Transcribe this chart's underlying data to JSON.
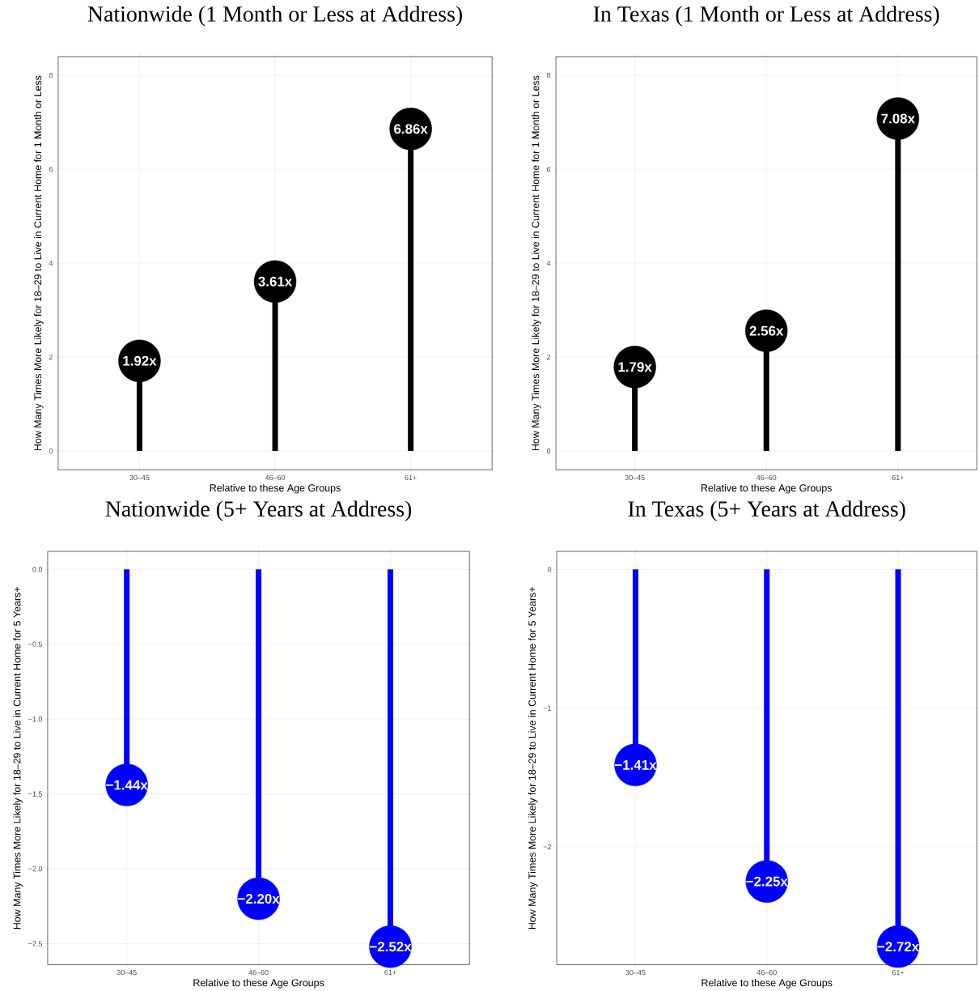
{
  "chart_data": [
    {
      "type": "lollipop",
      "title": "Nationwide (1 Month or Less at Address)",
      "xlabel": "Relative to these Age Groups",
      "ylabel": "How Many Times More Likely for 18–29 to Live in Current Home for 1 Month or Less",
      "categories": [
        "30–45",
        "46–60",
        "61+"
      ],
      "values": [
        1.92,
        3.61,
        6.86
      ],
      "value_labels": [
        "1.92x",
        "3.61x",
        "6.86x"
      ],
      "color": "#000000",
      "ylim": [
        -0.4,
        8.4
      ],
      "yticks": [
        0,
        2,
        4,
        6,
        8
      ],
      "grid": true
    },
    {
      "type": "lollipop",
      "title": "In Texas (1 Month or Less at Address)",
      "xlabel": "Relative to these Age Groups",
      "ylabel": "How Many Times More Likely for 18–29 to Live in Current Home for 1 Month or Less",
      "categories": [
        "30–45",
        "46–60",
        "61+"
      ],
      "values": [
        1.79,
        2.56,
        7.08
      ],
      "value_labels": [
        "1.79x",
        "2.56x",
        "7.08x"
      ],
      "color": "#000000",
      "ylim": [
        -0.4,
        8.4
      ],
      "yticks": [
        0,
        2,
        4,
        6,
        8
      ],
      "grid": true
    },
    {
      "type": "lollipop",
      "title": "Nationwide (5+ Years at Address)",
      "xlabel": "Relative to these Age Groups",
      "ylabel": "How Many Times More Likely for 18–29 to Live in Current Home for 5 Years+",
      "categories": [
        "30–45",
        "46–60",
        "61+"
      ],
      "values": [
        -1.44,
        -2.2,
        -2.52
      ],
      "value_labels": [
        "−1.44x",
        "−2.20x",
        "−2.52x"
      ],
      "color": "#0000ff",
      "ylim": [
        -2.64,
        0.12
      ],
      "yticks": [
        {
          "value": 0,
          "label": "0.0"
        },
        {
          "value": -0.5,
          "label": "−0.5"
        },
        {
          "value": -1,
          "label": "−1.0"
        },
        {
          "value": -1.5,
          "label": "−1.5"
        },
        {
          "value": -2,
          "label": "−2.0"
        },
        {
          "value": -2.5,
          "label": "−2.5"
        }
      ],
      "grid": true
    },
    {
      "type": "lollipop",
      "title": "In Texas (5+ Years at Address)",
      "xlabel": "Relative to these Age Groups",
      "ylabel": "How Many Times More Likely for 18–29 to Live in Current Home for 5 Years+",
      "categories": [
        "30–45",
        "46–60",
        "61+"
      ],
      "values": [
        -1.41,
        -2.25,
        -2.72
      ],
      "value_labels": [
        "−1.41x",
        "−2.25x",
        "−2.72x"
      ],
      "color": "#0000ff",
      "ylim": [
        -2.85,
        0.13
      ],
      "yticks": [
        0,
        {
          "value": -1,
          "label": "−1"
        },
        {
          "value": -2,
          "label": "−2"
        }
      ],
      "grid": true
    }
  ]
}
